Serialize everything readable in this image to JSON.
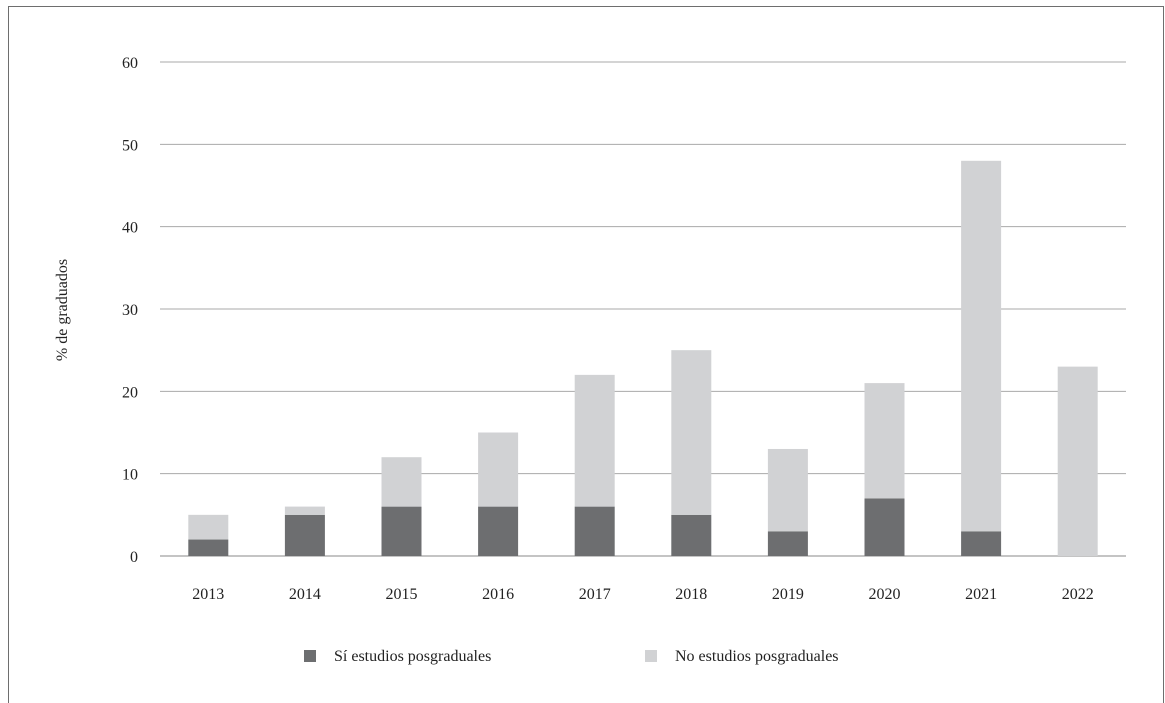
{
  "chart_data": {
    "type": "bar",
    "stacked": true,
    "categories": [
      "2013",
      "2014",
      "2015",
      "2016",
      "2017",
      "2018",
      "2019",
      "2020",
      "2021",
      "2022"
    ],
    "series": [
      {
        "name": "Sí estudios posgraduales",
        "color": "#6d6e70",
        "values": [
          2,
          5,
          6,
          6,
          6,
          5,
          3,
          7,
          3,
          0
        ]
      },
      {
        "name": "No estudios posgraduales",
        "color": "#d1d2d4",
        "values": [
          3,
          1,
          6,
          9,
          16,
          20,
          10,
          14,
          45,
          23
        ]
      }
    ],
    "title": "",
    "xlabel": "",
    "ylabel": "% de graduados",
    "ylim": [
      0,
      60
    ],
    "yticks": [
      "0",
      "10",
      "20",
      "30",
      "40",
      "50",
      "60"
    ],
    "grid": true,
    "legend_position": "bottom"
  }
}
